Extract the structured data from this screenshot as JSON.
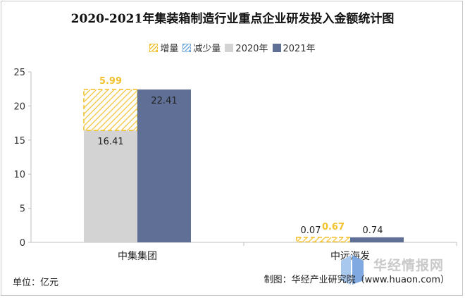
{
  "chart_data": {
    "type": "bar",
    "title": "2020-2021年集装箱制造行业重点企业研发投入金额统计图",
    "categories": [
      "中集集团",
      "中远海发"
    ],
    "series": [
      {
        "name": "2020年",
        "values": [
          16.41,
          0.07
        ],
        "color": "#d3d3d3"
      },
      {
        "name": "2021年",
        "values": [
          22.41,
          0.74
        ],
        "color": "#5f6f96"
      }
    ],
    "increase": {
      "name": "增量",
      "values": [
        5.99,
        0.67
      ],
      "color": "#f2c12e"
    },
    "decrease": {
      "name": "减少量",
      "color": "#6fa8dc"
    },
    "value_labels": {
      "series_2020": [
        "16.41",
        "0.07"
      ],
      "series_2021": [
        "22.41",
        "0.74"
      ],
      "increase": [
        "5.99",
        "0.67"
      ]
    },
    "yticks": [
      "0",
      "5",
      "10",
      "15",
      "20",
      "25"
    ],
    "ylim": [
      0,
      25
    ],
    "xlabel": "",
    "ylabel": ""
  },
  "legend": {
    "increase": "增量",
    "decrease": "减少量",
    "y2020": "2020年",
    "y2021": "2021年"
  },
  "footer": {
    "unit": "单位：亿元",
    "credit": "制图：华经产业研究院（www.huaon.com）"
  },
  "watermark": "华经情报网"
}
